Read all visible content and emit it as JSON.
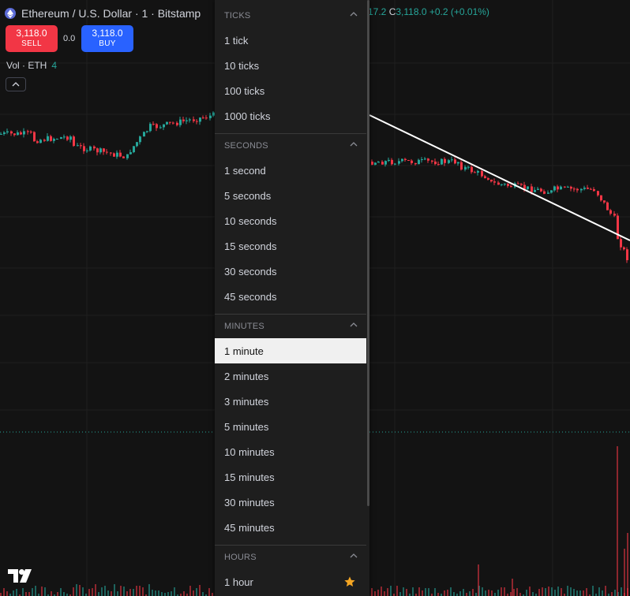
{
  "header": {
    "title": "Ethereum / U.S. Dollar · 1 · Bitstamp",
    "ohlc_prefix": "17.2",
    "close_label": "C",
    "close_value": "3,118.0",
    "change": "+0.2 (+0.01%)"
  },
  "trade": {
    "sell_price": "3,118.0",
    "sell_label": "SELL",
    "spread": "0.0",
    "buy_price": "3,118.0",
    "buy_label": "BUY"
  },
  "volume": {
    "label": "Vol · ETH",
    "value": "4"
  },
  "colors": {
    "up": "#26a69a",
    "down": "#f23645",
    "background": "#131313",
    "menu_bg": "#1e1e1e",
    "selected_bg": "#f0f0f0",
    "star": "#f5a623"
  },
  "menu": {
    "sections": [
      {
        "title": "TICKS",
        "items": [
          "1 tick",
          "10 ticks",
          "100 ticks",
          "1000 ticks"
        ]
      },
      {
        "title": "SECONDS",
        "items": [
          "1 second",
          "5 seconds",
          "10 seconds",
          "15 seconds",
          "30 seconds",
          "45 seconds"
        ]
      },
      {
        "title": "MINUTES",
        "items": [
          "1 minute",
          "2 minutes",
          "3 minutes",
          "5 minutes",
          "10 minutes",
          "15 minutes",
          "30 minutes",
          "45 minutes"
        ]
      },
      {
        "title": "HOURS",
        "items": [
          "1 hour"
        ]
      }
    ],
    "selected": "1 minute",
    "favorite": "1 hour"
  }
}
